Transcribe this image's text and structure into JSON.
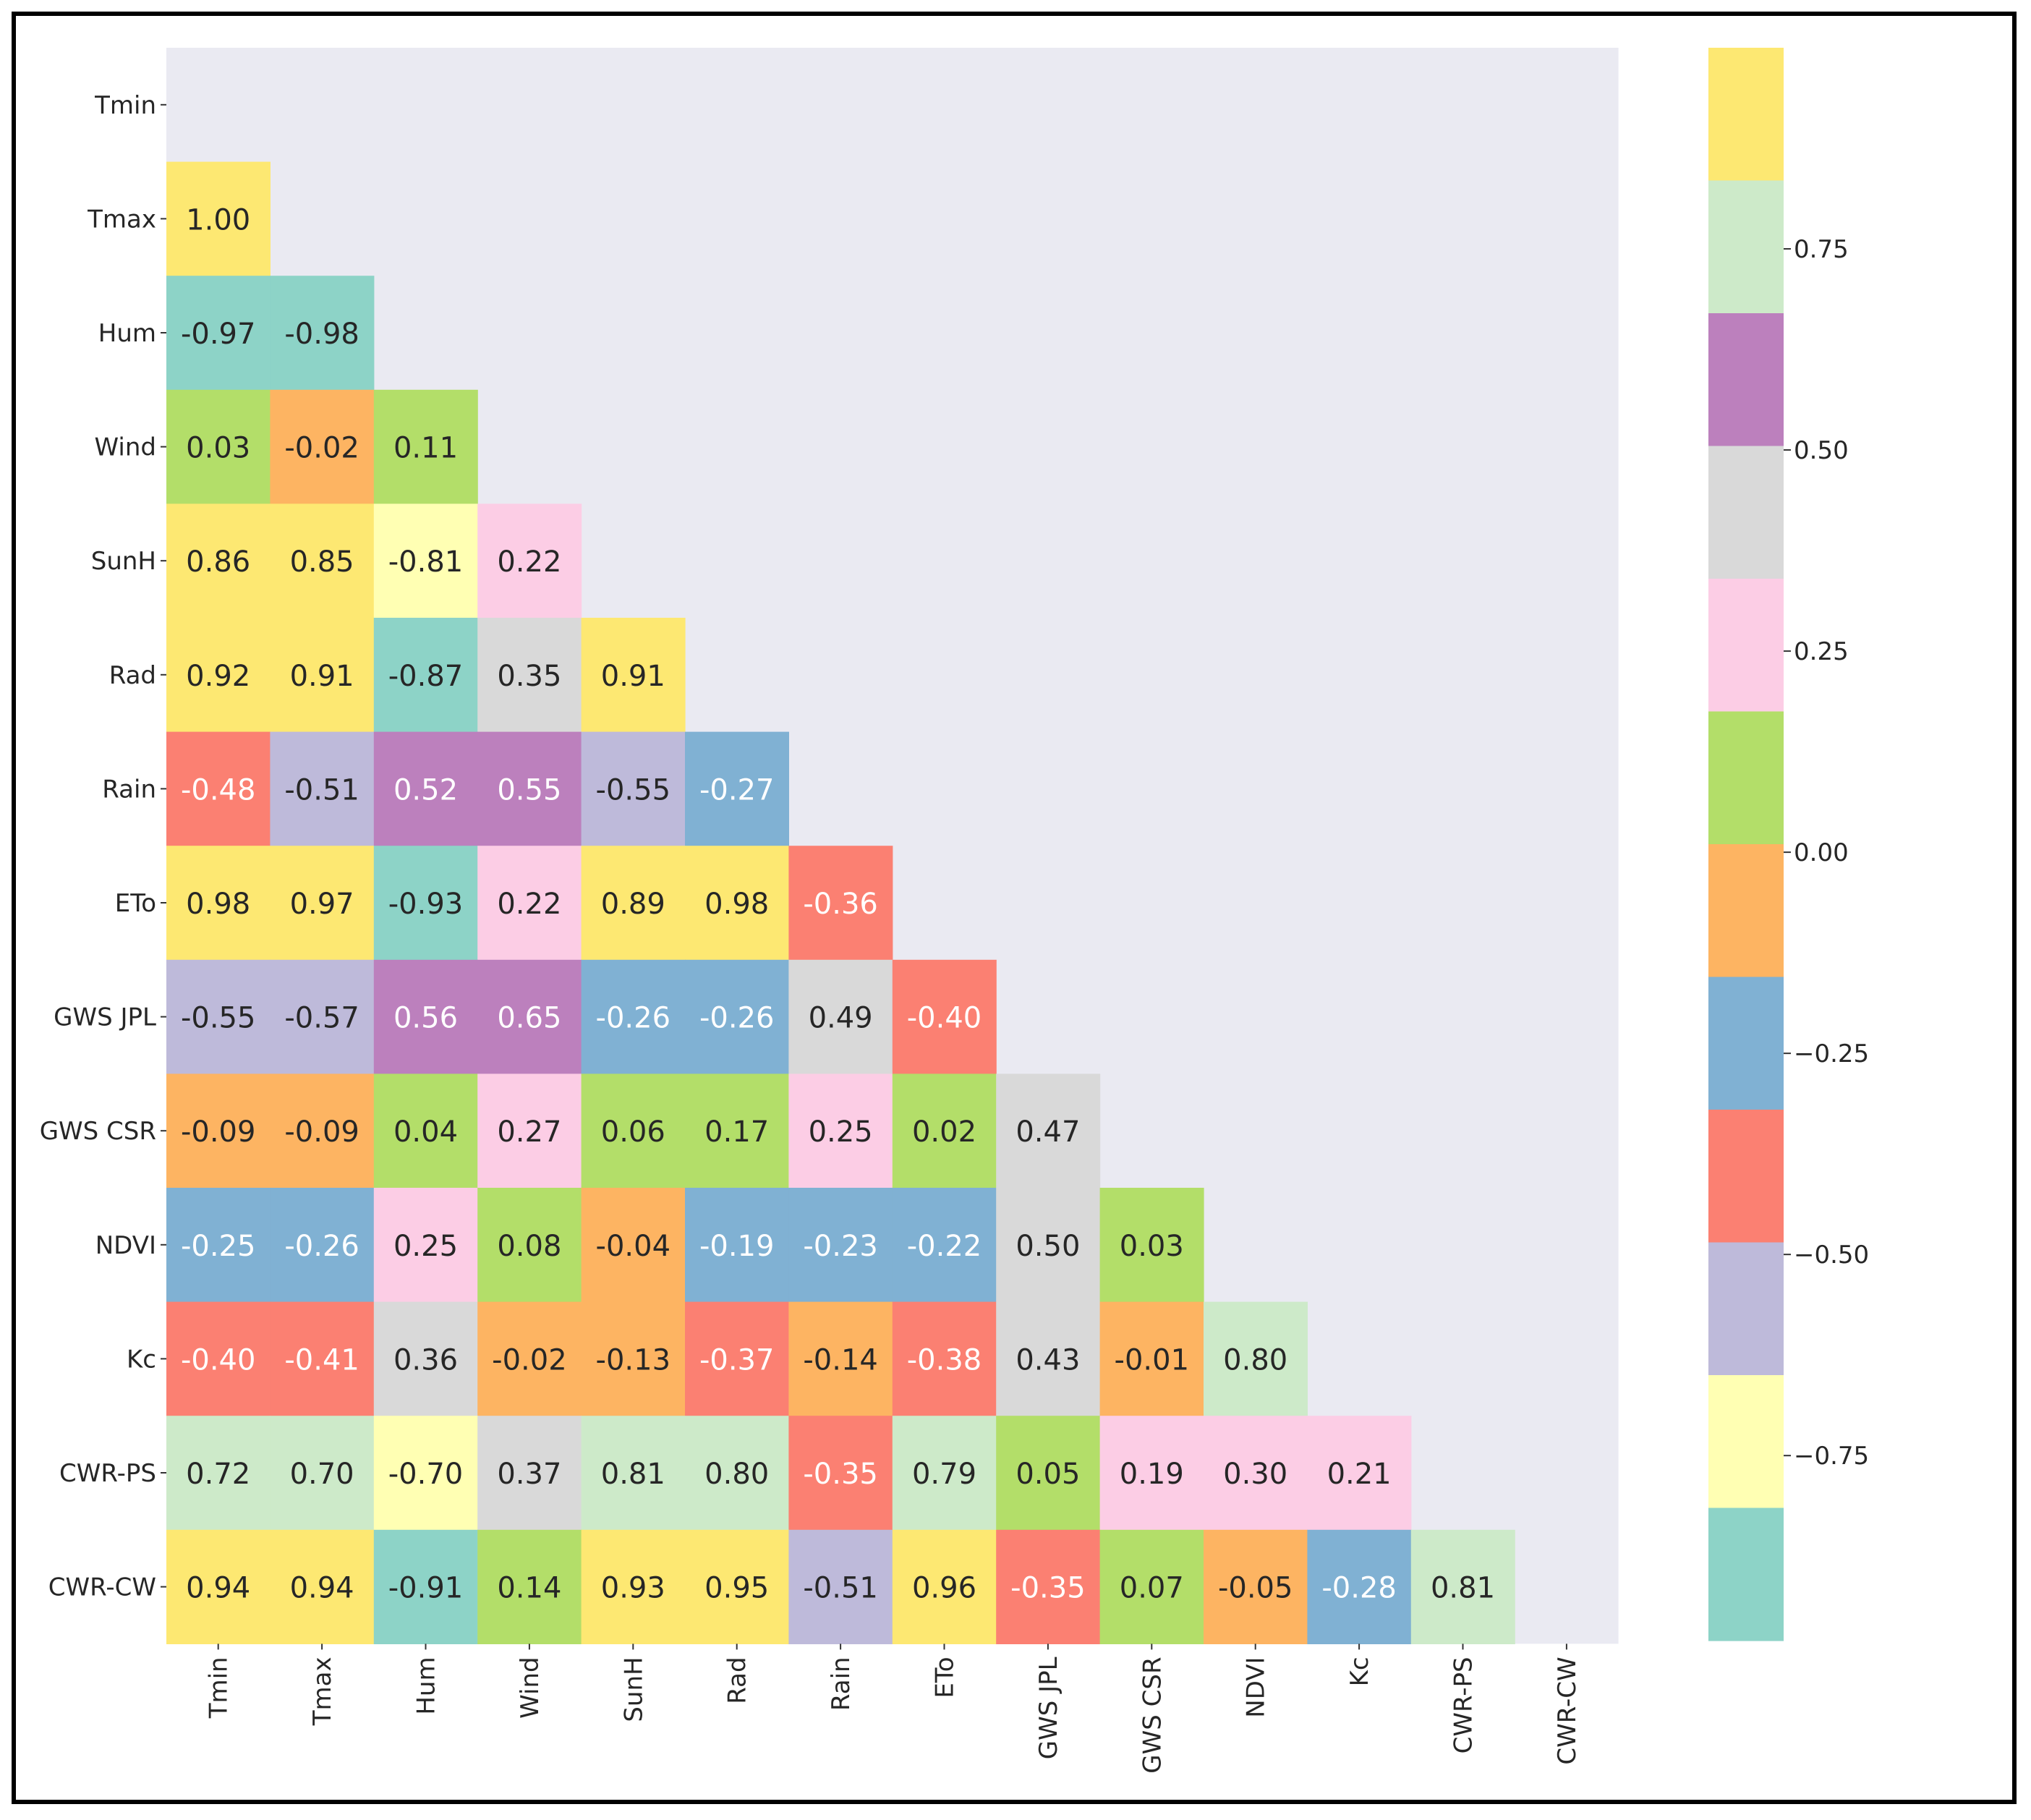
{
  "chart_data": {
    "type": "heatmap",
    "title": "",
    "xlabel": "",
    "ylabel": "",
    "variables": [
      "Tmin",
      "Tmax",
      "Hum",
      "Wind",
      "SunH",
      "Rad",
      "Rain",
      "ETo",
      "GWS JPL",
      "GWS CSR",
      "NDVI",
      "Kc",
      "CWR-PS",
      "CWR-CW"
    ],
    "values": [
      [],
      [
        "1.00"
      ],
      [
        "-0.97",
        "-0.98"
      ],
      [
        "0.03",
        "-0.02",
        "0.11"
      ],
      [
        "0.86",
        "0.85",
        "-0.81",
        "0.22"
      ],
      [
        "0.92",
        "0.91",
        "-0.87",
        "0.35",
        "0.91"
      ],
      [
        "-0.48",
        "-0.51",
        "0.52",
        "0.55",
        "-0.55",
        "-0.27"
      ],
      [
        "0.98",
        "0.97",
        "-0.93",
        "0.22",
        "0.89",
        "0.98",
        "-0.36"
      ],
      [
        "-0.55",
        "-0.57",
        "0.56",
        "0.65",
        "-0.26",
        "-0.26",
        "0.49",
        "-0.40"
      ],
      [
        "-0.09",
        "-0.09",
        "0.04",
        "0.27",
        "0.06",
        "0.17",
        "0.25",
        "0.02",
        "0.47"
      ],
      [
        "-0.25",
        "-0.26",
        "0.25",
        "0.08",
        "-0.04",
        "-0.19",
        "-0.23",
        "-0.22",
        "0.50",
        "0.03"
      ],
      [
        "-0.40",
        "-0.41",
        "0.36",
        "-0.02",
        "-0.13",
        "-0.37",
        "-0.14",
        "-0.38",
        "0.43",
        "-0.01",
        "0.80"
      ],
      [
        "0.72",
        "0.70",
        "-0.70",
        "0.37",
        "0.81",
        "0.80",
        "-0.35",
        "0.79",
        "0.05",
        "0.19",
        "0.30",
        "0.21"
      ],
      [
        "0.94",
        "0.94",
        "-0.91",
        "0.14",
        "0.93",
        "0.95",
        "-0.51",
        "0.96",
        "-0.35",
        "0.07",
        "-0.05",
        "-0.28",
        "0.81"
      ]
    ],
    "mask": "upper triangle including diagonal",
    "colorbar": {
      "range": [
        -0.98,
        1.0
      ],
      "n_bins": 12,
      "colors_top_to_bottom": [
        "#fde872",
        "#cdeac9",
        "#bc80bd",
        "#d9d9d9",
        "#fccde5",
        "#b3de69",
        "#fdb462",
        "#80b1d3",
        "#fb8072",
        "#bebada",
        "#ffffb3",
        "#8dd3c7"
      ],
      "ticks": [
        0.75,
        0.5,
        0.25,
        0.0,
        -0.25,
        -0.5,
        -0.75
      ],
      "tick_labels": [
        "0.75",
        "0.50",
        "0.25",
        "0.00",
        "−0.25",
        "−0.50",
        "−0.75"
      ]
    },
    "background_color": "#eaeaf2",
    "light_text_color": "#ffffff",
    "dark_text_color": "#262626"
  }
}
